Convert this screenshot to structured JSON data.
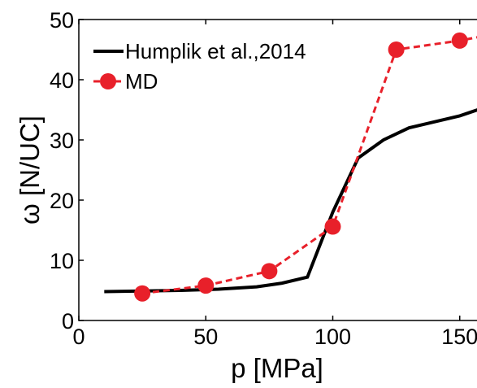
{
  "chart_data": {
    "type": "line",
    "title": "",
    "xlabel": "p [MPa]",
    "ylabel": "ω [N/UC]",
    "xlim": [
      0,
      160
    ],
    "ylim": [
      0,
      50
    ],
    "xticks": [
      0,
      50,
      100,
      150
    ],
    "yticks": [
      0,
      10,
      20,
      30,
      40,
      50
    ],
    "xtick_labels": [
      "0",
      "50",
      "100",
      "150"
    ],
    "ytick_labels": [
      "0",
      "10",
      "20",
      "30",
      "40",
      "50"
    ],
    "grid": false,
    "legend": "top-left",
    "series": [
      {
        "name": "Humplik et al.,2014",
        "color": "#000000",
        "style": "solid",
        "marker": "none",
        "x": [
          10,
          25,
          40,
          55,
          70,
          80,
          90,
          100,
          110,
          120,
          130,
          140,
          150,
          157
        ],
        "y": [
          4.8,
          4.9,
          5.0,
          5.2,
          5.6,
          6.2,
          7.2,
          18,
          27,
          30,
          32,
          33,
          34,
          35
        ]
      },
      {
        "name": "MD",
        "color": "#e8202a",
        "style": "dashed",
        "marker": "circle",
        "x": [
          25,
          50,
          75,
          100,
          125,
          150,
          160
        ],
        "y": [
          4.5,
          5.8,
          8.2,
          15.6,
          45,
          46.5,
          47.3
        ]
      }
    ]
  }
}
